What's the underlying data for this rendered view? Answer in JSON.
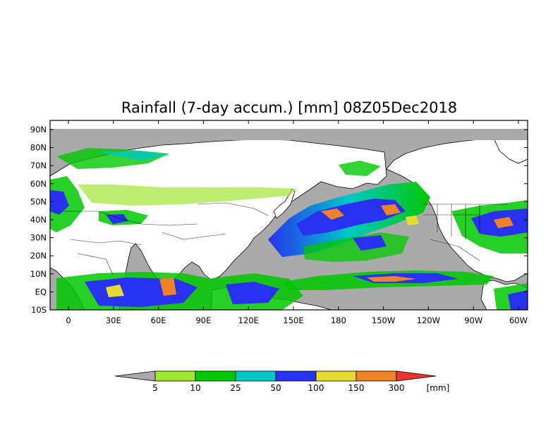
{
  "title": "Rainfall (7-day accum.) [mm] 08Z05Dec2018",
  "lat_labels": [
    "90N",
    "80N",
    "70N",
    "60N",
    "50N",
    "40N",
    "30N",
    "20N",
    "10N",
    "EQ",
    "10S"
  ],
  "lon_labels": [
    "0",
    "30E",
    "60E",
    "90E",
    "120E",
    "150E",
    "180",
    "150W",
    "120W",
    "90W",
    "60W"
  ],
  "legend": {
    "bins": [
      {
        "color": "#aaaaaa"
      },
      {
        "color": "#a0e632"
      },
      {
        "color": "#00c800"
      },
      {
        "color": "#00c8c8"
      },
      {
        "color": "#2832f0"
      },
      {
        "color": "#e6dc32"
      },
      {
        "color": "#f08228"
      },
      {
        "color": "#f03232"
      }
    ],
    "labels": [
      "5",
      "10",
      "25",
      "50",
      "100",
      "150",
      "300"
    ],
    "unit": "[mm]"
  },
  "colors": {
    "ocean_no_rain": "#aaaaaa",
    "land": "#ffffff",
    "coastline": "#000000"
  }
}
